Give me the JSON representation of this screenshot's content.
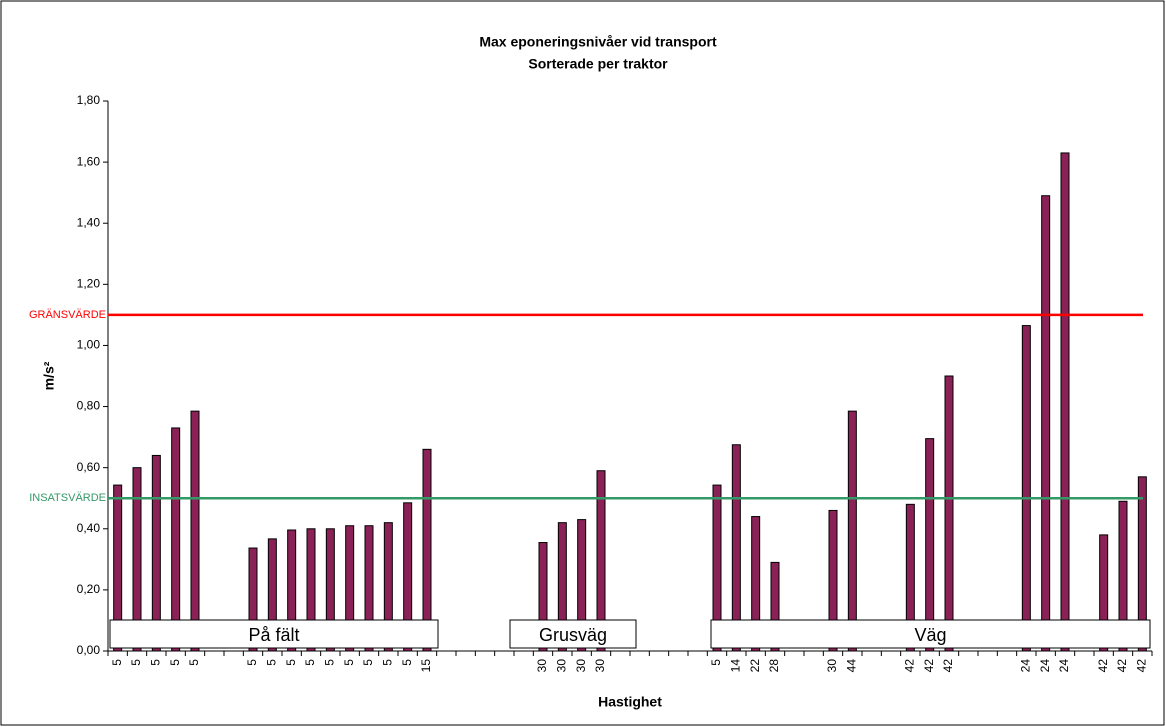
{
  "chart_data": {
    "type": "bar",
    "title": "Max eponeringsnivåer vid transport",
    "subtitle": "Sorterade per traktor",
    "x_label": "Hastighet",
    "y_label": "m/s²",
    "color": "#8b2257",
    "categories": [
      "5",
      "5",
      "5",
      "5",
      "5",
      null,
      null,
      "5",
      "5",
      "5",
      "5",
      "5",
      "5",
      "5",
      "5",
      "5",
      "15",
      null,
      null,
      null,
      null,
      null,
      "30",
      "30",
      "30",
      "30",
      null,
      null,
      null,
      null,
      null,
      "5",
      "14",
      "22",
      "28",
      null,
      null,
      "30",
      "44",
      null,
      null,
      "42",
      "42",
      "42",
      null,
      null,
      null,
      "24",
      "24",
      "24",
      null,
      "42",
      "42",
      "42"
    ],
    "values": [
      0.543,
      0.6,
      0.64,
      0.73,
      0.785,
      null,
      null,
      0.337,
      0.367,
      0.396,
      0.4,
      0.4,
      0.41,
      0.41,
      0.42,
      0.485,
      0.66,
      null,
      null,
      null,
      null,
      null,
      0.355,
      0.42,
      0.43,
      0.59,
      null,
      null,
      null,
      null,
      null,
      0.543,
      0.675,
      0.44,
      0.29,
      null,
      null,
      0.46,
      0.785,
      null,
      null,
      0.48,
      0.695,
      0.9,
      null,
      null,
      null,
      1.065,
      1.49,
      1.63,
      null,
      0.38,
      0.49,
      0.57
    ],
    "ylim": [
      0,
      1.8
    ],
    "yticks": [
      {
        "value": 0,
        "label": "0,00"
      },
      {
        "value": 0.2,
        "label": "0,20"
      },
      {
        "value": 0.4,
        "label": "0,40"
      },
      {
        "value": 0.6,
        "label": "0,60"
      },
      {
        "value": 0.8,
        "label": "0,80"
      },
      {
        "value": 1.0,
        "label": "1,00"
      },
      {
        "value": 1.2,
        "label": "1,20"
      },
      {
        "value": 1.4,
        "label": "1,40"
      },
      {
        "value": 1.6,
        "label": "1,60"
      },
      {
        "value": 1.8,
        "label": "1,80"
      }
    ],
    "reference_lines": [
      {
        "label": "GRÄNSVÄRDE",
        "value": 1.1,
        "color": "#ff0000"
      },
      {
        "label": "INSATSVÄRDE",
        "value": 0.5,
        "color": "#339966"
      }
    ],
    "annotations": [
      "På fält",
      "Grusväg",
      "Väg"
    ]
  }
}
